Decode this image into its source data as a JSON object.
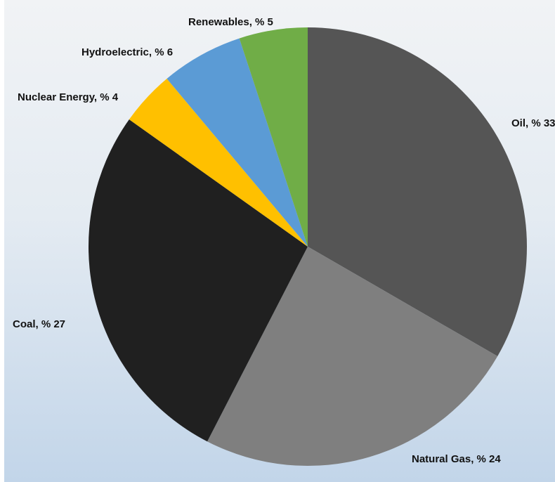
{
  "chart_data": {
    "type": "pie",
    "title": "",
    "slices": [
      {
        "name": "Oil",
        "value": 33,
        "label": "Oil, % 33",
        "color": "#555555"
      },
      {
        "name": "Natural Gas",
        "value": 24,
        "label": "Natural Gas, % 24",
        "color": "#7f7f7f"
      },
      {
        "name": "Coal",
        "value": 27,
        "label": "Coal, % 27",
        "color": "#202020"
      },
      {
        "name": "Nuclear Energy",
        "value": 4,
        "label": "Nuclear Energy, % 4",
        "color": "#ffc000"
      },
      {
        "name": "Hydroelectric",
        "value": 6,
        "label": "Hydroelectric, % 6",
        "color": "#5b9bd5"
      },
      {
        "name": "Renewables",
        "value": 5,
        "label": "Renewables, % 5",
        "color": "#70ad47"
      }
    ],
    "start_angle": "12 o'clock",
    "direction": "clockwise",
    "legend": "none",
    "data_labels": "outside"
  }
}
